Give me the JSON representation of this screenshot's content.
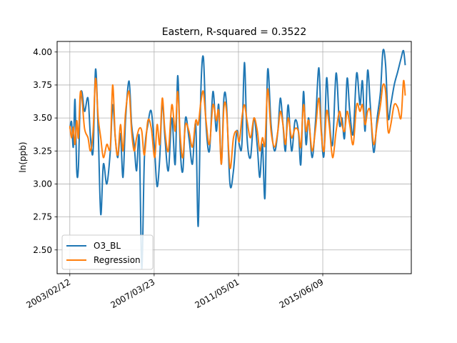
{
  "chart_data": {
    "type": "line",
    "title": "Eastern, R-squared = 0.3522",
    "xlabel": "",
    "ylabel": "ln(ppb)",
    "xlim": [
      "2002/07/01",
      "2019/10/01"
    ],
    "ylim": [
      2.32,
      4.08
    ],
    "grid": true,
    "legend_position": "lower-left",
    "x_ticks": [
      "2003/02/12",
      "2007/03/23",
      "2011/05/01",
      "2015/06/09"
    ],
    "y_ticks": [
      "2.50",
      "2.75",
      "3.00",
      "3.25",
      "3.50",
      "3.75",
      "4.00"
    ],
    "colors": {
      "O3_BL": "#1f77b4",
      "Regression": "#ff7f0e"
    },
    "series": [
      {
        "name": "O3_BL",
        "x": [
          "2003/02/12",
          "2003/03/15",
          "2003/04/15",
          "2003/05/15",
          "2003/06/15",
          "2003/07/15",
          "2003/08/15",
          "2003/09/15",
          "2003/11/01",
          "2004/01/01",
          "2004/02/15",
          "2004/04/01",
          "2004/05/15",
          "2004/07/01",
          "2004/08/15",
          "2004/10/01",
          "2004/12/01",
          "2005/02/01",
          "2005/03/15",
          "2005/05/01",
          "2005/06/15",
          "2005/08/01",
          "2005/09/15",
          "2005/11/01",
          "2006/01/01",
          "2006/02/15",
          "2006/04/01",
          "2006/05/15",
          "2006/07/01",
          "2006/08/15",
          "2006/10/01",
          "2006/12/01",
          "2007/02/01",
          "2007/04/01",
          "2007/05/15",
          "2007/07/01",
          "2007/08/15",
          "2007/10/01",
          "2007/12/01",
          "2008/02/01",
          "2008/04/01",
          "2008/05/15",
          "2008/07/01",
          "2008/08/15",
          "2008/10/01",
          "2008/12/01",
          "2009/02/01",
          "2009/04/01",
          "2009/05/15",
          "2009/07/01",
          "2009/08/15",
          "2009/10/01",
          "2009/12/01",
          "2010/02/01",
          "2010/04/01",
          "2010/05/15",
          "2010/07/01",
          "2010/08/15",
          "2010/10/01",
          "2010/12/01",
          "2011/02/01",
          "2011/04/01",
          "2011/05/15",
          "2011/07/01",
          "2011/08/15",
          "2011/10/01",
          "2011/12/01",
          "2012/02/01",
          "2012/04/01",
          "2012/05/15",
          "2012/07/01",
          "2012/08/15",
          "2012/10/01",
          "2012/12/01",
          "2013/02/01",
          "2013/04/01",
          "2013/05/15",
          "2013/07/01",
          "2013/08/15",
          "2013/10/01",
          "2013/12/01",
          "2014/02/01",
          "2014/04/01",
          "2014/05/15",
          "2014/07/01",
          "2014/08/15",
          "2014/10/01",
          "2014/12/01",
          "2015/02/01",
          "2015/04/01",
          "2015/05/15",
          "2015/07/01",
          "2015/08/15",
          "2015/10/01",
          "2015/12/01",
          "2016/02/01",
          "2016/04/01",
          "2016/05/15",
          "2016/07/01",
          "2016/08/15",
          "2016/10/01",
          "2016/12/01",
          "2017/02/01",
          "2017/04/01",
          "2017/05/15",
          "2017/07/01",
          "2017/08/15",
          "2017/10/01",
          "2017/12/01",
          "2018/02/01",
          "2018/04/01",
          "2018/05/15",
          "2018/07/01",
          "2018/08/15",
          "2018/10/01",
          "2018/12/01",
          "2019/02/01",
          "2019/04/01",
          "2019/05/15",
          "2019/06/15"
        ],
        "values": [
          3.42,
          3.47,
          3.28,
          3.64,
          3.1,
          3.13,
          3.62,
          3.7,
          3.55,
          3.65,
          3.35,
          3.25,
          3.87,
          3.4,
          2.77,
          3.15,
          3.0,
          3.25,
          3.6,
          3.35,
          3.2,
          3.38,
          3.05,
          3.5,
          3.78,
          3.45,
          3.3,
          3.1,
          3.35,
          2.36,
          3.2,
          3.45,
          3.55,
          3.25,
          2.98,
          3.2,
          3.62,
          3.35,
          3.1,
          3.5,
          3.15,
          3.82,
          3.25,
          3.1,
          3.5,
          3.35,
          3.15,
          3.45,
          2.68,
          3.7,
          3.96,
          3.45,
          3.25,
          3.7,
          3.4,
          3.6,
          3.15,
          3.65,
          3.6,
          3.0,
          3.1,
          3.4,
          3.3,
          3.3,
          3.92,
          3.35,
          3.2,
          3.5,
          3.28,
          3.05,
          3.3,
          2.9,
          3.86,
          3.45,
          3.25,
          3.4,
          3.65,
          3.45,
          3.25,
          3.6,
          3.25,
          3.48,
          3.4,
          3.15,
          3.7,
          3.3,
          3.5,
          3.2,
          3.48,
          3.88,
          3.4,
          3.22,
          3.8,
          3.5,
          3.3,
          3.84,
          3.45,
          3.5,
          3.35,
          3.8,
          3.55,
          3.38,
          3.84,
          3.6,
          3.78,
          3.4,
          3.86,
          3.6,
          3.24,
          3.5,
          3.7,
          4.01,
          3.9,
          3.5,
          3.6,
          3.75,
          3.85,
          3.95,
          4.01,
          3.9
        ]
      },
      {
        "name": "Regression",
        "x": [
          "2003/02/12",
          "2003/03/15",
          "2003/04/15",
          "2003/05/15",
          "2003/06/15",
          "2003/07/15",
          "2003/08/15",
          "2003/09/15",
          "2003/11/01",
          "2004/01/01",
          "2004/02/15",
          "2004/04/01",
          "2004/05/15",
          "2004/07/01",
          "2004/08/15",
          "2004/10/01",
          "2004/12/01",
          "2005/02/01",
          "2005/03/15",
          "2005/05/01",
          "2005/06/15",
          "2005/08/01",
          "2005/09/15",
          "2005/11/01",
          "2006/01/01",
          "2006/02/15",
          "2006/04/01",
          "2006/05/15",
          "2006/07/01",
          "2006/08/15",
          "2006/10/01",
          "2006/12/01",
          "2007/02/01",
          "2007/04/01",
          "2007/05/15",
          "2007/07/01",
          "2007/08/15",
          "2007/10/01",
          "2007/12/01",
          "2008/02/01",
          "2008/04/01",
          "2008/05/15",
          "2008/07/01",
          "2008/08/15",
          "2008/10/01",
          "2008/12/01",
          "2009/02/01",
          "2009/04/01",
          "2009/05/15",
          "2009/07/01",
          "2009/08/15",
          "2009/10/01",
          "2009/12/01",
          "2010/02/01",
          "2010/04/01",
          "2010/05/15",
          "2010/07/01",
          "2010/08/15",
          "2010/10/01",
          "2010/12/01",
          "2011/02/01",
          "2011/04/01",
          "2011/05/15",
          "2011/07/01",
          "2011/08/15",
          "2011/10/01",
          "2011/12/01",
          "2012/02/01",
          "2012/04/01",
          "2012/05/15",
          "2012/07/01",
          "2012/08/15",
          "2012/10/01",
          "2012/12/01",
          "2013/02/01",
          "2013/04/01",
          "2013/05/15",
          "2013/07/01",
          "2013/08/15",
          "2013/10/01",
          "2013/12/01",
          "2014/02/01",
          "2014/04/01",
          "2014/05/15",
          "2014/07/01",
          "2014/08/15",
          "2014/10/01",
          "2014/12/01",
          "2015/02/01",
          "2015/04/01",
          "2015/05/15",
          "2015/07/01",
          "2015/08/15",
          "2015/10/01",
          "2015/12/01",
          "2016/02/01",
          "2016/04/01",
          "2016/05/15",
          "2016/07/01",
          "2016/08/15",
          "2016/10/01",
          "2016/12/01",
          "2017/02/01",
          "2017/04/01",
          "2017/05/15",
          "2017/07/01",
          "2017/08/15",
          "2017/10/01",
          "2017/12/01",
          "2018/02/01",
          "2018/04/01",
          "2018/05/15",
          "2018/07/01",
          "2018/08/15",
          "2018/10/01",
          "2018/12/01",
          "2019/02/01",
          "2019/04/01",
          "2019/05/15",
          "2019/06/15"
        ],
        "values": [
          3.44,
          3.35,
          3.43,
          3.3,
          3.48,
          3.35,
          3.68,
          3.65,
          3.42,
          3.35,
          3.25,
          3.4,
          3.8,
          3.5,
          3.35,
          3.2,
          3.3,
          3.28,
          3.75,
          3.35,
          3.22,
          3.45,
          3.25,
          3.55,
          3.7,
          3.4,
          3.25,
          3.35,
          3.42,
          3.4,
          3.22,
          3.48,
          3.42,
          3.2,
          3.45,
          3.3,
          3.65,
          3.4,
          3.25,
          3.6,
          3.4,
          3.7,
          3.35,
          3.2,
          3.45,
          3.4,
          3.28,
          3.48,
          3.45,
          3.62,
          3.7,
          3.48,
          3.3,
          3.6,
          3.48,
          3.55,
          3.15,
          3.58,
          3.55,
          3.12,
          3.35,
          3.4,
          3.32,
          3.5,
          3.6,
          3.48,
          3.35,
          3.5,
          3.4,
          3.25,
          3.35,
          3.3,
          3.72,
          3.4,
          3.28,
          3.4,
          3.55,
          3.45,
          3.3,
          3.5,
          3.35,
          3.42,
          3.4,
          3.28,
          3.6,
          3.4,
          3.48,
          3.25,
          3.42,
          3.65,
          3.38,
          3.25,
          3.55,
          3.45,
          3.2,
          3.4,
          3.55,
          3.45,
          3.4,
          3.55,
          3.45,
          3.3,
          3.6,
          3.55,
          3.6,
          3.45,
          3.55,
          3.55,
          3.3,
          3.45,
          3.6,
          3.75,
          3.7,
          3.4,
          3.45,
          3.6,
          3.58,
          3.5,
          3.78,
          3.67
        ]
      }
    ]
  }
}
